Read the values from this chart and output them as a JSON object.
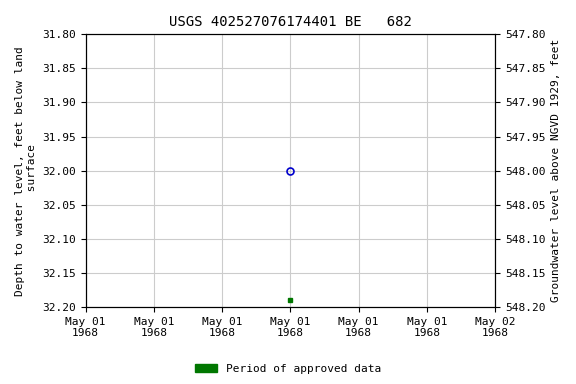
{
  "title": "USGS 402527076174401 BE   682",
  "ylabel_left": "Depth to water level, feet below land\n surface",
  "ylabel_right": "Groundwater level above NGVD 1929, feet",
  "ylim_left": [
    31.8,
    32.2
  ],
  "ylim_right": [
    547.8,
    548.2
  ],
  "yticks_left": [
    31.8,
    31.85,
    31.9,
    31.95,
    32.0,
    32.05,
    32.1,
    32.15,
    32.2
  ],
  "yticks_right": [
    547.8,
    547.85,
    547.9,
    547.95,
    548.0,
    548.05,
    548.1,
    548.15,
    548.2
  ],
  "data_points": [
    {
      "x": 3,
      "depth": 32.0,
      "type": "open_circle",
      "color": "#0000cc"
    },
    {
      "x": 3,
      "depth": 32.19,
      "type": "filled_square",
      "color": "#007700"
    }
  ],
  "xtick_positions": [
    0,
    1,
    2,
    3,
    4,
    5,
    6
  ],
  "xtick_labels": [
    "May 01\n1968",
    "May 01\n1968",
    "May 01\n1968",
    "May 01\n1968",
    "May 01\n1968",
    "May 01\n1968",
    "May 02\n1968"
  ],
  "legend_label": "Period of approved data",
  "legend_color": "#007700",
  "bg_color": "#ffffff",
  "grid_color": "#cccccc",
  "title_fontsize": 10,
  "label_fontsize": 8,
  "tick_fontsize": 8
}
